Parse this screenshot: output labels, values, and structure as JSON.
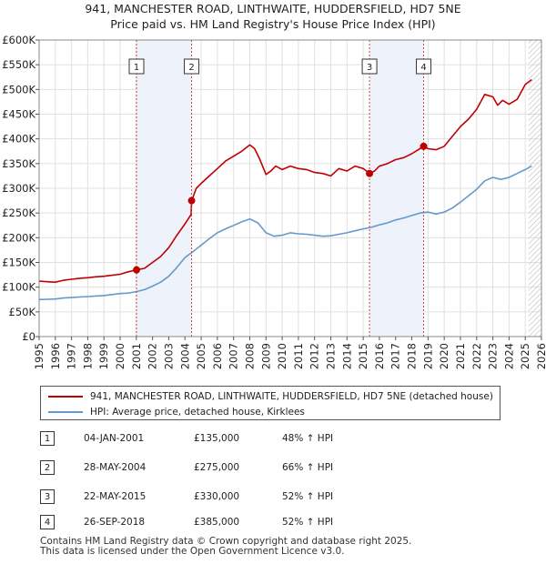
{
  "chart_data": {
    "type": "line",
    "title": "941, MANCHESTER ROAD, LINTHWAITE, HUDDERSFIELD, HD7 5NE",
    "subtitle": "Price paid vs. HM Land Registry's House Price Index (HPI)",
    "xlim": [
      1995,
      2026
    ],
    "ylim": [
      0,
      600000
    ],
    "x_ticks": [
      "1995",
      "1996",
      "1997",
      "1998",
      "1999",
      "2000",
      "2001",
      "2002",
      "2003",
      "2004",
      "2005",
      "2006",
      "2007",
      "2008",
      "2009",
      "2010",
      "2011",
      "2012",
      "2013",
      "2014",
      "2015",
      "2016",
      "2017",
      "2018",
      "2019",
      "2020",
      "2021",
      "2022",
      "2023",
      "2024",
      "2025",
      "2026"
    ],
    "y_ticks": [
      {
        "value": 0,
        "label": "£0"
      },
      {
        "value": 50000,
        "label": "£50K"
      },
      {
        "value": 100000,
        "label": "£100K"
      },
      {
        "value": 150000,
        "label": "£150K"
      },
      {
        "value": 200000,
        "label": "£200K"
      },
      {
        "value": 250000,
        "label": "£250K"
      },
      {
        "value": 300000,
        "label": "£300K"
      },
      {
        "value": 350000,
        "label": "£350K"
      },
      {
        "value": 400000,
        "label": "£400K"
      },
      {
        "value": 450000,
        "label": "£450K"
      },
      {
        "value": 500000,
        "label": "£500K"
      },
      {
        "value": 550000,
        "label": "£550K"
      },
      {
        "value": 600000,
        "label": "£600K"
      }
    ],
    "grid": true,
    "shaded_ranges": [
      [
        2001.01,
        2004.41
      ],
      [
        2015.39,
        2018.73
      ]
    ],
    "future_from": 2025.2,
    "series": [
      {
        "name": "941, MANCHESTER ROAD, LINTHWAITE, HUDDERSFIELD, HD7 5NE (detached house)",
        "color": "#c00000",
        "x": [
          1995.0,
          1995.5,
          1996.0,
          1996.5,
          1997.0,
          1997.5,
          1998.0,
          1998.5,
          1999.0,
          1999.5,
          2000.0,
          2000.5,
          2001.01,
          2001.5,
          2002.0,
          2002.5,
          2003.0,
          2003.5,
          2004.0,
          2004.38,
          2004.41,
          2004.7,
          2005.0,
          2005.5,
          2006.0,
          2006.5,
          2007.0,
          2007.5,
          2008.0,
          2008.3,
          2008.6,
          2009.0,
          2009.3,
          2009.6,
          2010.0,
          2010.5,
          2011.0,
          2011.5,
          2012.0,
          2012.5,
          2013.0,
          2013.5,
          2014.0,
          2014.5,
          2015.0,
          2015.39,
          2015.7,
          2016.0,
          2016.5,
          2017.0,
          2017.5,
          2018.0,
          2018.4,
          2018.73,
          2019.0,
          2019.5,
          2020.0,
          2020.5,
          2021.0,
          2021.5,
          2022.0,
          2022.5,
          2023.0,
          2023.3,
          2023.6,
          2024.0,
          2024.5,
          2025.0,
          2025.4
        ],
        "values": [
          112000,
          111000,
          110000,
          114000,
          116000,
          118000,
          119000,
          121000,
          122000,
          124000,
          126000,
          131000,
          135000,
          138000,
          150000,
          162000,
          180000,
          205000,
          228000,
          247000,
          275000,
          300000,
          310000,
          325000,
          340000,
          355000,
          365000,
          375000,
          388000,
          380000,
          360000,
          328000,
          335000,
          345000,
          338000,
          345000,
          340000,
          338000,
          332000,
          330000,
          325000,
          340000,
          335000,
          345000,
          340000,
          330000,
          335000,
          345000,
          350000,
          358000,
          362000,
          370000,
          378000,
          385000,
          380000,
          378000,
          385000,
          405000,
          425000,
          440000,
          460000,
          490000,
          485000,
          468000,
          478000,
          470000,
          480000,
          510000,
          520000
        ]
      },
      {
        "name": "HPI: Average price, detached house, Kirklees",
        "color": "#6699cc",
        "x": [
          1995.0,
          1995.5,
          1996.0,
          1996.5,
          1997.0,
          1997.5,
          1998.0,
          1998.5,
          1999.0,
          1999.5,
          2000.0,
          2000.5,
          2001.0,
          2001.5,
          2002.0,
          2002.5,
          2003.0,
          2003.5,
          2004.0,
          2004.5,
          2005.0,
          2005.5,
          2006.0,
          2006.5,
          2007.0,
          2007.5,
          2008.0,
          2008.5,
          2009.0,
          2009.5,
          2010.0,
          2010.5,
          2011.0,
          2011.5,
          2012.0,
          2012.5,
          2013.0,
          2013.5,
          2014.0,
          2014.5,
          2015.0,
          2015.5,
          2016.0,
          2016.5,
          2017.0,
          2017.5,
          2018.0,
          2018.5,
          2019.0,
          2019.5,
          2020.0,
          2020.5,
          2021.0,
          2021.5,
          2022.0,
          2022.5,
          2023.0,
          2023.5,
          2024.0,
          2024.5,
          2025.0,
          2025.4
        ],
        "values": [
          75000,
          75500,
          76000,
          78000,
          79000,
          80000,
          81000,
          82000,
          83000,
          85000,
          87000,
          88000,
          91000,
          95000,
          102000,
          110000,
          122000,
          140000,
          160000,
          172000,
          185000,
          198000,
          210000,
          218000,
          225000,
          232000,
          238000,
          230000,
          210000,
          203000,
          205000,
          210000,
          208000,
          207000,
          205000,
          203000,
          204000,
          207000,
          210000,
          214000,
          218000,
          221000,
          226000,
          230000,
          236000,
          240000,
          245000,
          250000,
          252000,
          248000,
          252000,
          260000,
          272000,
          285000,
          298000,
          315000,
          322000,
          318000,
          322000,
          330000,
          338000,
          345000
        ]
      }
    ],
    "markers": [
      {
        "label": "1",
        "x": 2001.01,
        "value": 135000
      },
      {
        "label": "2",
        "x": 2004.41,
        "value": 275000
      },
      {
        "label": "3",
        "x": 2015.39,
        "value": 330000
      },
      {
        "label": "4",
        "x": 2018.73,
        "value": 385000
      }
    ]
  },
  "legend": {
    "property": "941, MANCHESTER ROAD, LINTHWAITE, HUDDERSFIELD, HD7 5NE (detached house)",
    "hpi": "HPI: Average price, detached house, Kirklees",
    "property_color": "#c00000",
    "hpi_color": "#6699cc"
  },
  "sales": [
    {
      "num": "1",
      "date": "04-JAN-2001",
      "price": "£135,000",
      "hpi": "48% ↑ HPI"
    },
    {
      "num": "2",
      "date": "28-MAY-2004",
      "price": "£275,000",
      "hpi": "66% ↑ HPI"
    },
    {
      "num": "3",
      "date": "22-MAY-2015",
      "price": "£330,000",
      "hpi": "52% ↑ HPI"
    },
    {
      "num": "4",
      "date": "26-SEP-2018",
      "price": "£385,000",
      "hpi": "52% ↑ HPI"
    }
  ],
  "footer": {
    "line1": "Contains HM Land Registry data © Crown copyright and database right 2025.",
    "line2": "This data is licensed under the Open Government Licence v3.0."
  }
}
